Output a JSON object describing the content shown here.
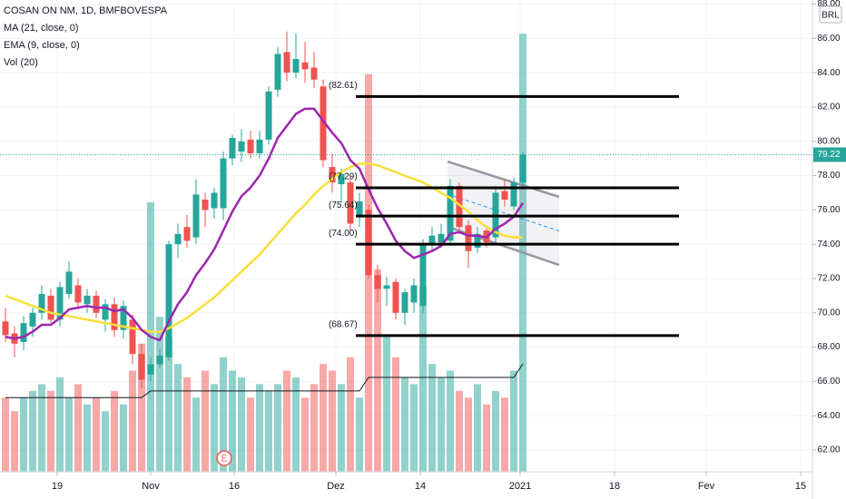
{
  "chart_data": {
    "type": "candlestick",
    "title": "COSAN ON NM, 1D, BMFBOVESPA",
    "currency": "BRL",
    "ylim": [
      60.73,
      88.24
    ],
    "yticks": [
      {
        "value": 62,
        "label": "62.00"
      },
      {
        "value": 64,
        "label": "64.00"
      },
      {
        "value": 66,
        "label": "66.00"
      },
      {
        "value": 68,
        "label": "68.00"
      },
      {
        "value": 70,
        "label": "70.00"
      },
      {
        "value": 72,
        "label": "72.00"
      },
      {
        "value": 74,
        "label": "74.00"
      },
      {
        "value": 76,
        "label": "76.00"
      },
      {
        "value": 78,
        "label": "78.00"
      },
      {
        "value": 80,
        "label": "80.00"
      },
      {
        "value": 82,
        "label": "82.00"
      },
      {
        "value": 84,
        "label": "84.00"
      },
      {
        "value": 86,
        "label": "86.00"
      },
      {
        "value": 88,
        "label": "88.00"
      }
    ],
    "xlim": [
      -0.6,
      88.9
    ],
    "xticks": [
      {
        "value": 5.7,
        "label": "19"
      },
      {
        "value": 16,
        "label": "Nov"
      },
      {
        "value": 25.2,
        "label": "16"
      },
      {
        "value": 36.4,
        "label": "Dez"
      },
      {
        "value": 45.7,
        "label": "14"
      },
      {
        "value": 56.7,
        "label": "2021"
      },
      {
        "value": 67.1,
        "label": "18"
      },
      {
        "value": 77.2,
        "label": "Fev"
      },
      {
        "value": 87.6,
        "label": "15"
      }
    ],
    "grid": true,
    "up_color": "#26a69a",
    "down_color": "#ef5350",
    "open": [
      69.5,
      68.8,
      68.3,
      69.2,
      70.0,
      71.0,
      69.6,
      71.1,
      71.6,
      70.5,
      71.0,
      69.6,
      70.5,
      69.0,
      69.6,
      67.6,
      66.4,
      67.0,
      67.4,
      74.0,
      75.0,
      74.4,
      76.6,
      76.1,
      76.1,
      79.0,
      79.4,
      80.1,
      79.3,
      80.1,
      83.0,
      85.2,
      84.0,
      84.6,
      84.3,
      83.2,
      78.5,
      77.5,
      77.6,
      75.6,
      76.0,
      72.2,
      71.4,
      71.8,
      70.0,
      70.6,
      70.4,
      74.0,
      74.1,
      74.2,
      77.4,
      75.1,
      73.8,
      74.8,
      74.4,
      77.1,
      76.2,
      77.6
    ],
    "high": [
      70.3,
      69.2,
      69.8,
      70.3,
      71.6,
      71.4,
      71.8,
      73.0,
      72.0,
      71.4,
      71.3,
      70.8,
      70.9,
      70.7,
      69.9,
      68.2,
      67.4,
      67.9,
      74.2,
      75.2,
      75.7,
      77.8,
      77.0,
      77.3,
      79.4,
      80.4,
      80.7,
      80.6,
      80.6,
      83.2,
      85.5,
      86.4,
      86.3,
      85.8,
      85.2,
      83.6,
      79.3,
      78.4,
      78.0,
      77.0,
      76.3,
      72.8,
      72.1,
      72.0,
      71.4,
      72.0,
      74.3,
      75.0,
      75.2,
      77.8,
      77.6,
      75.4,
      75.0,
      75.1,
      77.4,
      77.8,
      77.9,
      79.4
    ],
    "low": [
      68.3,
      67.4,
      67.8,
      68.6,
      69.6,
      69.4,
      69.2,
      70.8,
      70.2,
      70.0,
      69.7,
      68.9,
      68.6,
      68.5,
      67.0,
      65.6,
      66.0,
      66.8,
      67.2,
      73.2,
      73.8,
      74.0,
      75.0,
      75.5,
      75.4,
      78.6,
      78.8,
      79.0,
      79.0,
      79.8,
      82.6,
      83.5,
      83.7,
      83.4,
      83.1,
      78.5,
      77.0,
      76.4,
      74.8,
      75.0,
      72.0,
      70.6,
      70.4,
      69.6,
      69.3,
      70.0,
      70.0,
      73.6,
      73.8,
      73.9,
      74.6,
      72.6,
      73.5,
      73.8,
      74.0,
      76.2,
      76.0,
      77.2
    ],
    "close": [
      68.7,
      68.2,
      69.4,
      70.0,
      71.1,
      69.6,
      71.5,
      72.4,
      70.6,
      71.0,
      70.0,
      70.5,
      69.0,
      70.4,
      67.6,
      66.1,
      67.0,
      67.5,
      74.0,
      74.6,
      74.2,
      76.9,
      76.0,
      77.0,
      79.0,
      80.2,
      80.0,
      79.3,
      80.1,
      82.9,
      85.1,
      84.0,
      84.8,
      84.2,
      83.6,
      78.9,
      77.6,
      78.1,
      75.2,
      76.5,
      72.2,
      71.4,
      71.6,
      70.0,
      71.2,
      71.6,
      74.0,
      74.5,
      74.6,
      77.4,
      75.0,
      73.6,
      74.6,
      74.1,
      77.0,
      76.6,
      77.6,
      79.22
    ],
    "series": [
      {
        "name": "MA (21, close, 0)",
        "color": "#f7e03a",
        "values": [
          71.0,
          70.8,
          70.6,
          70.4,
          70.2,
          70.0,
          69.9,
          69.8,
          69.7,
          69.6,
          69.5,
          69.4,
          69.3,
          69.2,
          69.1,
          69.0,
          68.9,
          68.9,
          69.1,
          69.4,
          69.7,
          70.1,
          70.5,
          70.9,
          71.4,
          71.9,
          72.4,
          72.9,
          73.4,
          74.0,
          74.6,
          75.2,
          75.8,
          76.3,
          76.9,
          77.4,
          77.8,
          78.2,
          78.5,
          78.7,
          78.7,
          78.6,
          78.4,
          78.2,
          78.0,
          77.8,
          77.6,
          77.3,
          77.0,
          76.7,
          76.3,
          75.9,
          75.4,
          75.0,
          74.7,
          74.5,
          74.4,
          74.4
        ]
      },
      {
        "name": "EMA (9, close, 0)",
        "color": "#9c27b0",
        "values": [
          68.6,
          68.5,
          68.6,
          68.9,
          69.3,
          69.3,
          69.7,
          70.2,
          70.3,
          70.4,
          70.3,
          70.3,
          70.1,
          70.2,
          69.7,
          69.0,
          68.6,
          68.4,
          69.5,
          70.5,
          71.2,
          72.2,
          72.9,
          73.7,
          74.8,
          75.9,
          76.8,
          77.3,
          78.0,
          79.0,
          80.2,
          80.9,
          81.6,
          81.9,
          81.9,
          81.2,
          80.5,
          79.9,
          78.9,
          78.4,
          77.2,
          76.1,
          75.2,
          74.2,
          73.6,
          73.2,
          73.4,
          73.6,
          73.9,
          74.6,
          74.7,
          74.5,
          74.5,
          74.4,
          74.9,
          75.2,
          75.6,
          76.4
        ]
      }
    ],
    "volume_name": "Vol (20)",
    "vlim": [
      0,
      140
    ],
    "volume": [
      22,
      18,
      22,
      24,
      26,
      24,
      28,
      22,
      26,
      20,
      22,
      18,
      24,
      20,
      30,
      38,
      80,
      46,
      40,
      32,
      28,
      22,
      30,
      26,
      34,
      30,
      28,
      22,
      26,
      24,
      26,
      30,
      28,
      22,
      26,
      32,
      30,
      26,
      34,
      22,
      118,
      60,
      40,
      34,
      28,
      26,
      55,
      32,
      28,
      30,
      24,
      22,
      26,
      20,
      24,
      22,
      30,
      130
    ],
    "volume_ma": [
      22,
      22,
      22,
      22,
      22,
      22,
      22,
      22,
      22,
      22,
      22,
      22,
      22,
      22,
      22,
      22,
      24,
      24,
      24,
      24,
      24,
      24,
      24,
      24,
      24,
      24,
      24,
      24,
      24,
      24,
      24,
      24,
      24,
      24,
      24,
      24,
      24,
      24,
      24,
      24,
      28,
      28,
      28,
      28,
      28,
      28,
      28,
      28,
      28,
      28,
      28,
      28,
      28,
      28,
      28,
      28,
      28,
      32
    ],
    "levels_x": [
      38.6,
      74.2
    ],
    "levels": [
      {
        "value": 82.61,
        "label": "(82.61)"
      },
      {
        "value": 77.29,
        "label": "(77.29)"
      },
      {
        "value": 75.64,
        "label": "(75.64)"
      },
      {
        "value": 74.0,
        "label": "(74.00)"
      },
      {
        "value": 68.67,
        "label": "(68.67)"
      }
    ],
    "channel": {
      "upper": [
        [
          48.7,
          78.82
        ],
        [
          61,
          76.76
        ]
      ],
      "lower": [
        [
          48.7,
          75.02
        ],
        [
          61,
          72.79
        ]
      ]
    },
    "events": [
      {
        "x": 24.1,
        "label": "E"
      }
    ]
  }
}
